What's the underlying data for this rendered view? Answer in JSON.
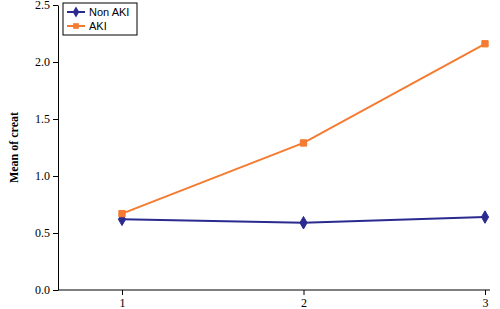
{
  "chart_data": {
    "type": "line",
    "y_label": "Mean of creat",
    "categories": [
      "1",
      "2",
      "3"
    ],
    "series": [
      {
        "name": "Non AKI",
        "color": "#2b2a8f",
        "marker": "diamond",
        "values": [
          0.62,
          0.59,
          0.64
        ]
      },
      {
        "name": "AKI",
        "color": "#f47b30",
        "marker": "square",
        "values": [
          0.67,
          1.29,
          2.16
        ]
      }
    ],
    "ylim": [
      0,
      2.5
    ],
    "yticks": [
      {
        "value": 0,
        "label": "0.0"
      },
      0.5,
      {
        "value": 1,
        "label": "1.0"
      },
      1.5,
      {
        "value": 2,
        "label": "2.0"
      },
      2.5
    ],
    "legend": "upper left"
  }
}
